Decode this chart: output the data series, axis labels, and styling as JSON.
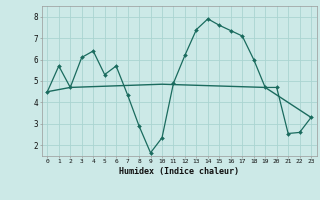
{
  "line1_x": [
    0,
    1,
    2,
    3,
    4,
    5,
    6,
    7,
    8,
    9,
    10,
    11,
    12,
    13,
    14,
    15,
    16,
    17,
    18,
    19,
    20,
    21,
    22,
    23
  ],
  "line1_y": [
    4.5,
    5.7,
    4.7,
    6.1,
    6.4,
    5.3,
    5.7,
    4.35,
    2.9,
    1.65,
    2.35,
    4.9,
    6.2,
    7.4,
    7.9,
    7.6,
    7.35,
    7.1,
    6.0,
    4.7,
    4.7,
    2.55,
    2.6,
    3.3
  ],
  "line2_x": [
    0,
    2,
    10,
    19,
    23
  ],
  "line2_y": [
    4.5,
    4.7,
    4.85,
    4.7,
    3.3
  ],
  "xlabel": "Humidex (Indice chaleur)",
  "xlim": [
    -0.5,
    23.5
  ],
  "ylim": [
    1.5,
    8.5
  ],
  "yticks": [
    2,
    3,
    4,
    5,
    6,
    7,
    8
  ],
  "xticks": [
    0,
    1,
    2,
    3,
    4,
    5,
    6,
    7,
    8,
    9,
    10,
    11,
    12,
    13,
    14,
    15,
    16,
    17,
    18,
    19,
    20,
    21,
    22,
    23
  ],
  "line_color": "#1a6b5e",
  "bg_color": "#cce9e7",
  "grid_color": "#aad4d1"
}
